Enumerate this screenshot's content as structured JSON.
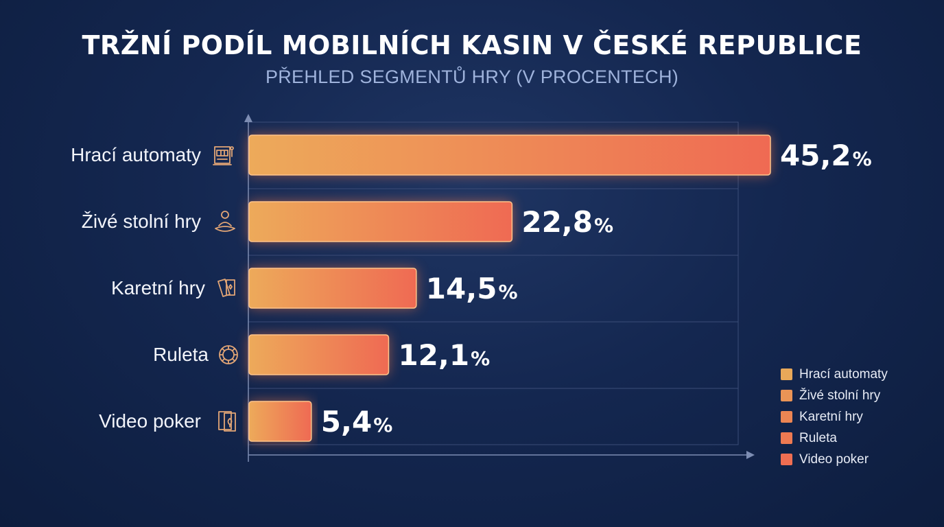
{
  "chart_data": {
    "type": "bar",
    "orientation": "horizontal",
    "title": "TRŽNÍ PODÍL MOBILNÍCH KASIN V ČESKÉ REPUBLICE",
    "subtitle": "PŘEHLED SEGMENTŮ HRY (V PROCENTECH)",
    "categories": [
      "Hrací automaty",
      "Živé stolní hry",
      "Karetní hry",
      "Ruleta",
      "Video poker"
    ],
    "values": [
      45.2,
      22.8,
      14.5,
      12.1,
      5.4
    ],
    "value_labels": [
      "45,2",
      "22,8",
      "14,5",
      "12,1",
      "5,4"
    ],
    "unit": "%",
    "category_icons": [
      "slot-machine-icon",
      "croupier-icon",
      "playing-cards-icon",
      "roulette-wheel-icon",
      "poker-card-icon"
    ],
    "xlim": [
      0,
      45.2
    ],
    "grid": true,
    "legend": {
      "position": "bottom-right",
      "entries": [
        {
          "label": "Hrací automaty",
          "color": "#e8a859"
        },
        {
          "label": "Živé stolní hry",
          "color": "#ea9456"
        },
        {
          "label": "Karetní hry",
          "color": "#ec8553"
        },
        {
          "label": "Ruleta",
          "color": "#ee7a52"
        },
        {
          "label": "Video poker",
          "color": "#ef6e52"
        }
      ]
    },
    "colors": {
      "bar_start": "#edaa5a",
      "bar_end": "#ef6a53",
      "glow": "#ff7a45"
    }
  }
}
